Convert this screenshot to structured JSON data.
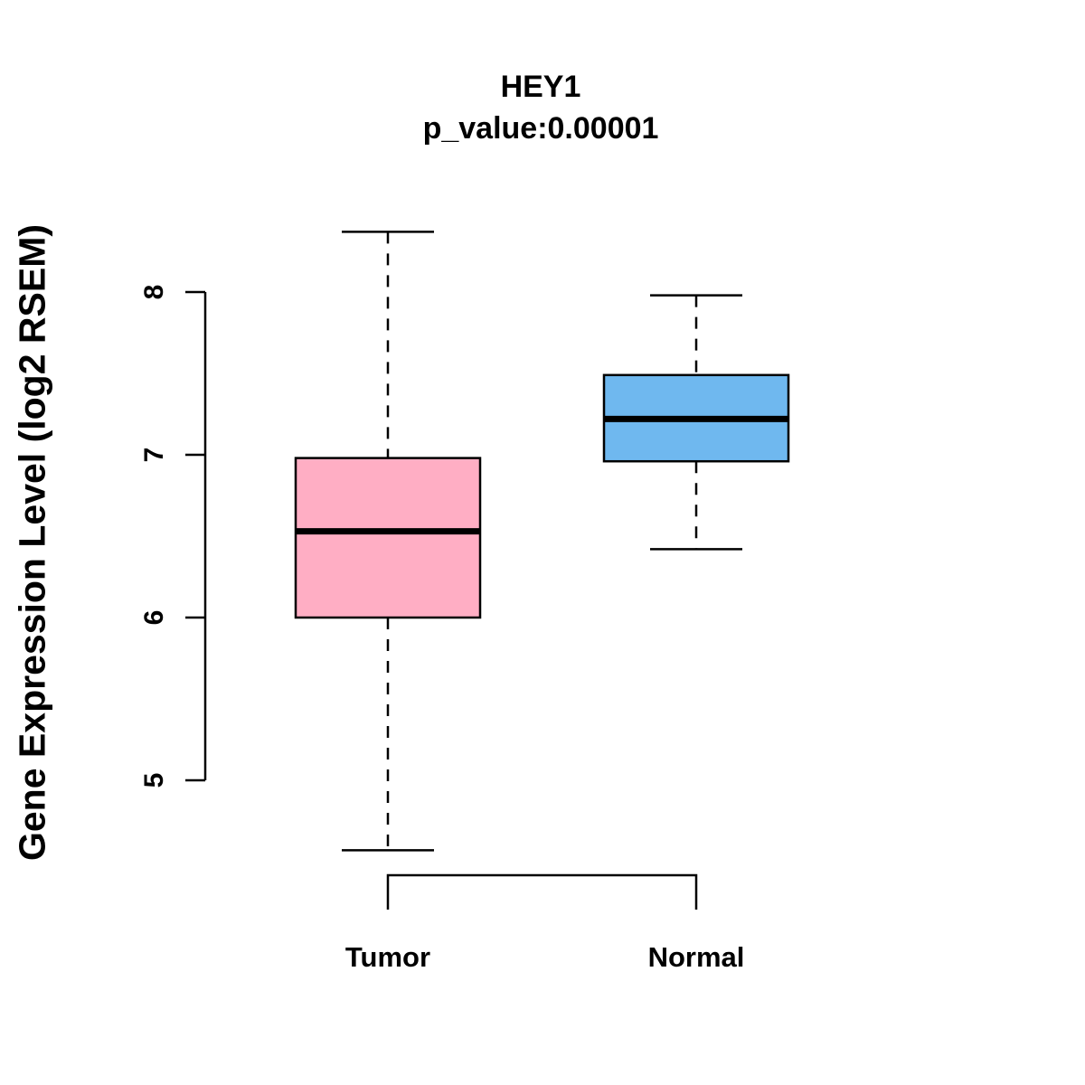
{
  "chart_data": {
    "type": "boxplot",
    "title": "HEY1",
    "subtitle": "p_value:0.00001",
    "ylabel": "Gene Expression Level (log2 RSEM)",
    "xlabel": "",
    "yticks": [
      5,
      6,
      7,
      8
    ],
    "ylim": [
      4.4,
      8.6
    ],
    "grid": false,
    "legend": "none",
    "groups": [
      {
        "label": "Tumor",
        "color": "#FFAEC4",
        "stats": {
          "whisker_low": 4.57,
          "q1": 6.0,
          "median": 6.53,
          "q3": 6.98,
          "whisker_high": 8.37
        }
      },
      {
        "label": "Normal",
        "color": "#6FB8EF",
        "stats": {
          "whisker_low": 6.42,
          "q1": 6.96,
          "median": 7.22,
          "q3": 7.49,
          "whisker_high": 7.98
        }
      }
    ],
    "comparison_bracket": {
      "groups": [
        "Tumor",
        "Normal"
      ]
    }
  }
}
